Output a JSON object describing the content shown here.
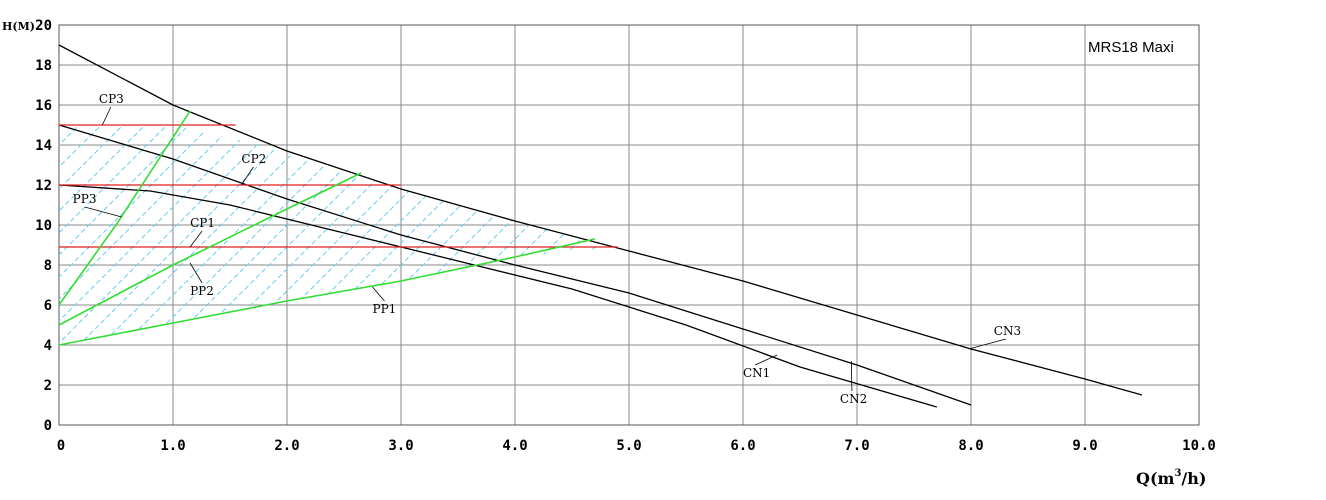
{
  "chart_data": {
    "type": "line",
    "title": "MRS18 Maxi",
    "xlabel": "Q(m³/h)",
    "xlabel_main": "Q(m",
    "xlabel_sup": "3",
    "xlabel_tail": "/h)",
    "ylabel": "H(M)",
    "xlim": [
      0,
      10
    ],
    "ylim": [
      0,
      20
    ],
    "grid": true,
    "x_ticks": [
      "0",
      "1.0",
      "2.0",
      "3.0",
      "4.0",
      "5.0",
      "6.0",
      "7.0",
      "8.0",
      "9.0",
      "10.0"
    ],
    "y_ticks": [
      "0",
      "2",
      "4",
      "6",
      "8",
      "10",
      "12",
      "14",
      "16",
      "18",
      "20"
    ],
    "series": [
      {
        "name": "CN3",
        "color": "#000000",
        "x": [
          0,
          1,
          2,
          3,
          4,
          5,
          6,
          7,
          8,
          9,
          9.5
        ],
        "y": [
          19.0,
          16.0,
          13.7,
          11.8,
          10.2,
          8.7,
          7.2,
          5.5,
          3.8,
          2.3,
          1.5
        ]
      },
      {
        "name": "CN2",
        "color": "#000000",
        "x": [
          0,
          1,
          2,
          3,
          4,
          5,
          6,
          7,
          8
        ],
        "y": [
          15.0,
          13.3,
          11.3,
          9.5,
          8.0,
          6.6,
          4.8,
          3.0,
          1.0
        ]
      },
      {
        "name": "CN1",
        "color": "#000000",
        "x": [
          0,
          0.8,
          1.5,
          2.5,
          3.5,
          4.5,
          5.5,
          6.5,
          7.7
        ],
        "y": [
          12.0,
          11.7,
          11.0,
          9.6,
          8.2,
          6.8,
          5.0,
          2.9,
          0.9
        ]
      },
      {
        "name": "CP3",
        "color": "#e02020",
        "x": [
          0,
          1.55
        ],
        "y": [
          15.0,
          15.0
        ]
      },
      {
        "name": "CP2",
        "color": "#e02020",
        "x": [
          0,
          3.0
        ],
        "y": [
          12.0,
          12.0
        ]
      },
      {
        "name": "CP1",
        "color": "#e02020",
        "x": [
          0,
          4.9
        ],
        "y": [
          8.9,
          8.9
        ]
      },
      {
        "name": "PP3",
        "color": "#33dd33",
        "x": [
          0,
          0.5,
          1.15
        ],
        "y": [
          6.0,
          10.0,
          15.7
        ]
      },
      {
        "name": "PP2",
        "color": "#33dd33",
        "x": [
          0,
          1.0,
          2.0,
          2.65
        ],
        "y": [
          5.0,
          8.0,
          10.8,
          12.6
        ]
      },
      {
        "name": "PP1",
        "color": "#33dd33",
        "x": [
          0,
          1.0,
          2.0,
          3.0,
          4.0,
          4.7
        ],
        "y": [
          4.0,
          5.1,
          6.2,
          7.2,
          8.4,
          9.3
        ]
      }
    ],
    "hatch_region": {
      "x": [
        0,
        1,
        2,
        3,
        4,
        4.9,
        4.0,
        3.0,
        2.0,
        1.0,
        0
      ],
      "y": [
        15.0,
        15.0,
        13.7,
        11.8,
        10.2,
        8.9,
        8.4,
        7.2,
        6.2,
        5.1,
        4.0
      ],
      "color": "#66ccee"
    },
    "annotations": [
      {
        "text": "CP3",
        "x": 0.35,
        "y": 16.1,
        "tx": 0.38,
        "ty": 15.0
      },
      {
        "text": "CP2",
        "x": 1.6,
        "y": 13.1,
        "tx": 1.6,
        "ty": 12.0
      },
      {
        "text": "PP3",
        "x": 0.12,
        "y": 11.1,
        "tx": 0.55,
        "ty": 10.4
      },
      {
        "text": "CP1",
        "x": 1.15,
        "y": 9.9,
        "tx": 1.15,
        "ty": 8.9
      },
      {
        "text": "PP2",
        "x": 1.15,
        "y": 6.5,
        "tx": 1.15,
        "ty": 8.1
      },
      {
        "text": "PP1",
        "x": 2.75,
        "y": 5.6,
        "tx": 2.75,
        "ty": 6.9
      },
      {
        "text": "CN1",
        "x": 6.0,
        "y": 2.4,
        "tx": 6.3,
        "ty": 3.5
      },
      {
        "text": "CN2",
        "x": 6.85,
        "y": 1.1,
        "tx": 6.95,
        "ty": 3.2
      },
      {
        "text": "CN3",
        "x": 8.2,
        "y": 4.5,
        "tx": 7.98,
        "ty": 3.8
      }
    ]
  }
}
